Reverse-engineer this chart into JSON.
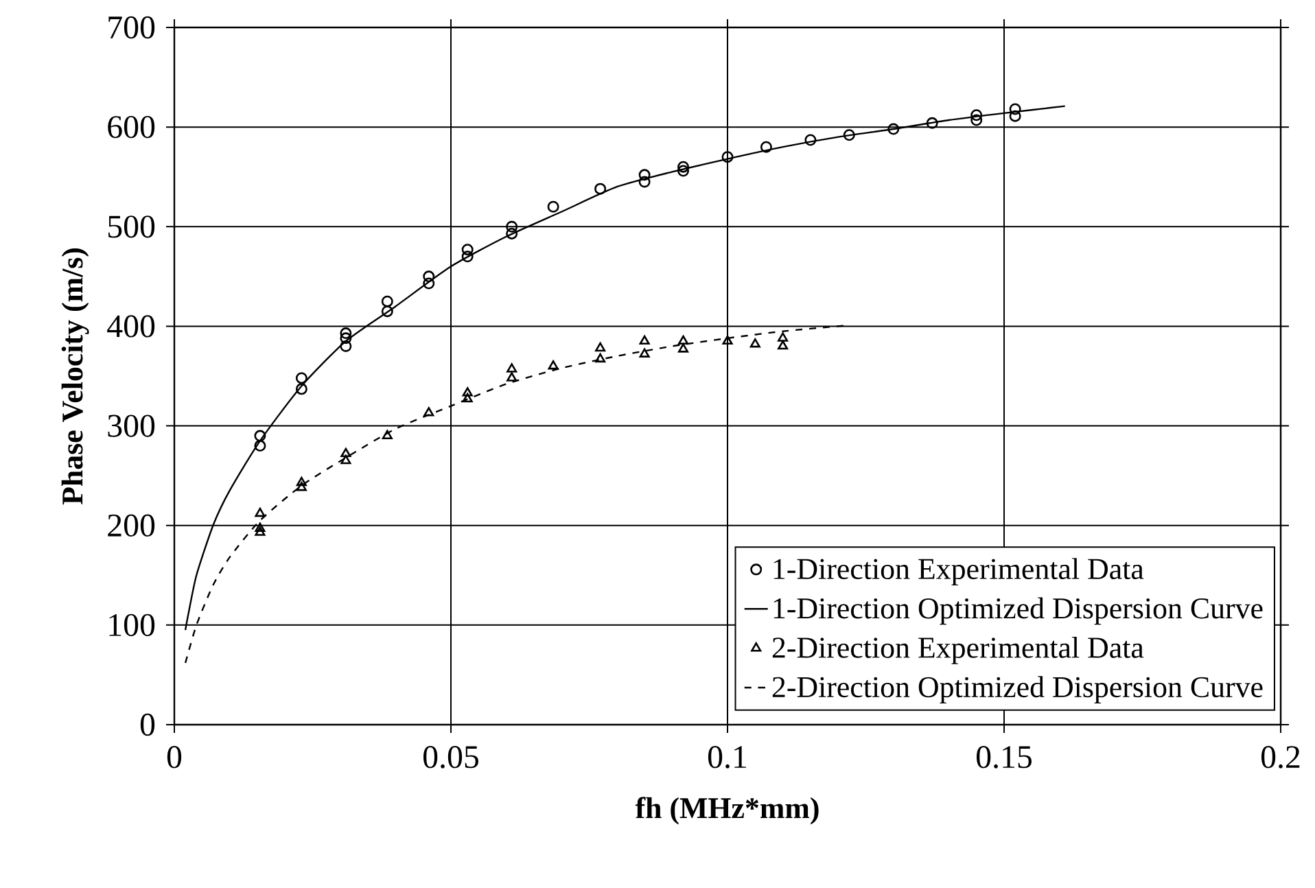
{
  "chart_data": {
    "type": "scatter",
    "xlabel": "fh (MHz*mm)",
    "ylabel": "Phase Velocity (m/s)",
    "xlim": [
      0,
      0.2
    ],
    "ylim": [
      0,
      700
    ],
    "xticks": [
      0,
      0.05,
      0.1,
      0.15,
      0.2
    ],
    "yticks": [
      0,
      100,
      200,
      300,
      400,
      500,
      600,
      700
    ],
    "grid": true,
    "legend": "bottom right",
    "series": [
      {
        "name": "1-Direction Experimental Data",
        "marker": "circle",
        "color": "#000000",
        "x": [
          0.0155,
          0.0155,
          0.023,
          0.023,
          0.031,
          0.031,
          0.031,
          0.0385,
          0.0385,
          0.046,
          0.046,
          0.053,
          0.053,
          0.061,
          0.061,
          0.0685,
          0.077,
          0.085,
          0.085,
          0.092,
          0.092,
          0.1,
          0.107,
          0.115,
          0.122,
          0.13,
          0.137,
          0.145,
          0.145,
          0.152,
          0.152
        ],
        "values": [
          290,
          280,
          348,
          337,
          393,
          388,
          380,
          425,
          415,
          450,
          443,
          477,
          470,
          500,
          493,
          520,
          538,
          552,
          545,
          560,
          556,
          570,
          580,
          587,
          592,
          598,
          604,
          612,
          607,
          618,
          611
        ]
      },
      {
        "name": "1-Direction Optimized Dispersion Curve",
        "type": "line",
        "line_style": "solid",
        "color": "#000000",
        "x": [
          0.002,
          0.0025,
          0.004,
          0.007,
          0.01,
          0.0155,
          0.023,
          0.031,
          0.04,
          0.05,
          0.06,
          0.07,
          0.08,
          0.09,
          0.1,
          0.11,
          0.12,
          0.13,
          0.14,
          0.15,
          0.161
        ],
        "values": [
          95,
          110,
          150,
          200,
          235,
          285,
          340,
          385,
          420,
          460,
          490,
          515,
          540,
          555,
          568,
          580,
          590,
          598,
          607,
          614,
          621
        ]
      },
      {
        "name": "2-Direction Experimental Data",
        "marker": "triangle",
        "color": "#000000",
        "x": [
          0.0155,
          0.0155,
          0.0155,
          0.023,
          0.023,
          0.031,
          0.031,
          0.0385,
          0.046,
          0.053,
          0.053,
          0.061,
          0.061,
          0.0685,
          0.077,
          0.077,
          0.085,
          0.085,
          0.092,
          0.092,
          0.1,
          0.105,
          0.11,
          0.11
        ],
        "values": [
          212,
          197,
          193,
          243,
          238,
          272,
          265,
          290,
          313,
          333,
          327,
          357,
          348,
          360,
          378,
          367,
          385,
          372,
          385,
          377,
          385,
          382,
          388,
          380
        ]
      },
      {
        "name": "2-Direction Optimized Dispersion Curve",
        "type": "line",
        "line_style": "dashed",
        "color": "#000000",
        "x": [
          0.002,
          0.004,
          0.007,
          0.01,
          0.0155,
          0.023,
          0.031,
          0.04,
          0.05,
          0.06,
          0.07,
          0.08,
          0.09,
          0.1,
          0.11,
          0.122
        ],
        "values": [
          62,
          100,
          140,
          168,
          205,
          240,
          268,
          297,
          320,
          342,
          358,
          370,
          380,
          388,
          395,
          401
        ]
      }
    ]
  }
}
